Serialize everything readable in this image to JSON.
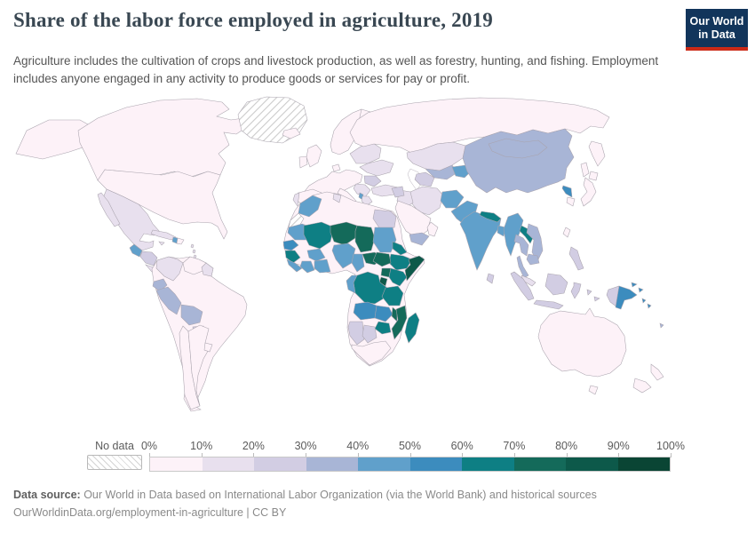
{
  "header": {
    "title": "Share of the labor force employed in agriculture, 2019",
    "subtitle": "Agriculture includes the cultivation of crops and livestock production, as well as forestry, hunting, and fishing. Employment includes anyone engaged in any activity to produce goods or services for pay or profit.",
    "logo": {
      "line1": "Our World",
      "line2": "in Data",
      "bg_color": "#12355b",
      "accent_color": "#cc2a17"
    }
  },
  "footer": {
    "source_label": "Data source:",
    "source_text": " Our World in Data based on International Labor Organization (via the World Bank) and historical sources",
    "link_text": "OurWorldinData.org/employment-in-agriculture | CC BY"
  },
  "chart_data": {
    "type": "choropleth",
    "title": "Share of the labor force employed in agriculture",
    "year": "2019",
    "unit": "% of labor force",
    "legend": {
      "no_data_label": "No data",
      "tick_labels": [
        "0%",
        "10%",
        "20%",
        "30%",
        "40%",
        "50%",
        "60%",
        "70%",
        "80%",
        "90%",
        "100%"
      ],
      "bin_size": 10,
      "bin_colors": [
        "#fdf2f8",
        "#e8e0ee",
        "#d2cde3",
        "#a8b5d6",
        "#60a0cb",
        "#3c8cbe",
        "#0e7f84",
        "#146a5a",
        "#0d594a",
        "#0a4534"
      ],
      "no_data_pattern": "diagonal-hatch"
    },
    "countries": [
      {
        "id": "usa",
        "name": "United States",
        "value": 1
      },
      {
        "id": "canada",
        "name": "Canada",
        "value": 2
      },
      {
        "id": "greenland",
        "name": "Greenland",
        "value": null
      },
      {
        "id": "iceland",
        "name": "Iceland",
        "value": 4
      },
      {
        "id": "mexico",
        "name": "Mexico",
        "value": 12
      },
      {
        "id": "guatemala",
        "name": "Guatemala",
        "value": 41
      },
      {
        "id": "honduras-nicaragua",
        "name": "Honduras & Nicaragua",
        "value": 29
      },
      {
        "id": "costa-rica-panama",
        "name": "Costa Rica & Panama",
        "value": 13
      },
      {
        "id": "cuba",
        "name": "Cuba",
        "value": 17
      },
      {
        "id": "jamaica",
        "name": "Jamaica",
        "value": 15
      },
      {
        "id": "haiti",
        "name": "Haiti",
        "value": 45
      },
      {
        "id": "dominican-republic",
        "name": "Dominican Republic",
        "value": 8
      },
      {
        "id": "lesser-antilles",
        "name": "Lesser Antilles",
        "value": 15
      },
      {
        "id": "colombia",
        "name": "Colombia",
        "value": 16
      },
      {
        "id": "venezuela",
        "name": "Venezuela",
        "value": 8
      },
      {
        "id": "guyana-suriname",
        "name": "Guyana & Suriname",
        "value": 17
      },
      {
        "id": "ecuador",
        "name": "Ecuador",
        "value": 31
      },
      {
        "id": "peru",
        "name": "Peru",
        "value": 31
      },
      {
        "id": "bolivia",
        "name": "Bolivia",
        "value": 33
      },
      {
        "id": "brazil",
        "name": "Brazil",
        "value": 9
      },
      {
        "id": "paraguay",
        "name": "Paraguay",
        "value": 21
      },
      {
        "id": "chile",
        "name": "Chile",
        "value": 9
      },
      {
        "id": "argentina",
        "name": "Argentina",
        "value": 7
      },
      {
        "id": "uruguay",
        "name": "Uruguay",
        "value": 8
      },
      {
        "id": "uk",
        "name": "United Kingdom",
        "value": 1
      },
      {
        "id": "ireland",
        "name": "Ireland",
        "value": 4
      },
      {
        "id": "france",
        "name": "France & Western Europe",
        "value": 2
      },
      {
        "id": "spain",
        "name": "Spain",
        "value": 4
      },
      {
        "id": "portugal",
        "name": "Portugal",
        "value": 12
      },
      {
        "id": "scandinavia",
        "name": "Norway & Sweden",
        "value": 2
      },
      {
        "id": "finland",
        "name": "Finland",
        "value": 4
      },
      {
        "id": "denmark",
        "name": "Denmark",
        "value": 2
      },
      {
        "id": "eastern-europe",
        "name": "Poland, Baltics & Belarus",
        "value": 12
      },
      {
        "id": "ukraine",
        "name": "Ukraine",
        "value": 14
      },
      {
        "id": "romania",
        "name": "Romania",
        "value": 25
      },
      {
        "id": "balkans",
        "name": "Balkans",
        "value": 15
      },
      {
        "id": "albania",
        "name": "Albania",
        "value": 42
      },
      {
        "id": "greece",
        "name": "Greece",
        "value": 11
      },
      {
        "id": "italy",
        "name": "Italy",
        "value": 4
      },
      {
        "id": "turkey",
        "name": "Turkey",
        "value": 18
      },
      {
        "id": "russia",
        "name": "Russia",
        "value": 6
      },
      {
        "id": "kazakhstan",
        "name": "Kazakhstan",
        "value": 13
      },
      {
        "id": "uzbekistan",
        "name": "Uzbekistan",
        "value": 32
      },
      {
        "id": "turkmenistan",
        "name": "Turkmenistan",
        "value": 24
      },
      {
        "id": "tajikistan-kyrgyzstan",
        "name": "Tajikistan & Kyrgyzstan",
        "value": 45
      },
      {
        "id": "iran",
        "name": "Iran",
        "value": 17
      },
      {
        "id": "iraq",
        "name": "Iraq",
        "value": 18
      },
      {
        "id": "syria",
        "name": "Syria",
        "value": 22
      },
      {
        "id": "saudi-arabia",
        "name": "Saudi Arabia",
        "value": 2
      },
      {
        "id": "yemen",
        "name": "Yemen",
        "value": 33
      },
      {
        "id": "oman",
        "name": "Oman",
        "value": 4
      },
      {
        "id": "afghanistan",
        "name": "Afghanistan",
        "value": 43
      },
      {
        "id": "pakistan",
        "name": "Pakistan",
        "value": 41
      },
      {
        "id": "india",
        "name": "India",
        "value": 43
      },
      {
        "id": "nepal",
        "name": "Nepal",
        "value": 64
      },
      {
        "id": "bangladesh",
        "name": "Bangladesh",
        "value": 42
      },
      {
        "id": "sri-lanka",
        "name": "Sri Lanka",
        "value": 25
      },
      {
        "id": "china",
        "name": "China",
        "value": 31
      },
      {
        "id": "mongolia",
        "name": "Mongolia",
        "value": 31
      },
      {
        "id": "north-korea",
        "name": "North Korea",
        "value": 52
      },
      {
        "id": "south-korea",
        "name": "South Korea",
        "value": 5
      },
      {
        "id": "japan",
        "name": "Japan",
        "value": 3
      },
      {
        "id": "taiwan",
        "name": "Taiwan",
        "value": 5
      },
      {
        "id": "myanmar",
        "name": "Myanmar",
        "value": 48
      },
      {
        "id": "laos",
        "name": "Laos",
        "value": 61
      },
      {
        "id": "thailand",
        "name": "Thailand",
        "value": 31
      },
      {
        "id": "vietnam",
        "name": "Vietnam",
        "value": 37
      },
      {
        "id": "cambodia",
        "name": "Cambodia",
        "value": 33
      },
      {
        "id": "malaysia",
        "name": "Malaysia",
        "value": 10
      },
      {
        "id": "indonesia",
        "name": "Indonesia",
        "value": 28
      },
      {
        "id": "philippines",
        "name": "Philippines",
        "value": 23
      },
      {
        "id": "papua-new-guinea",
        "name": "Papua New Guinea",
        "value": 57
      },
      {
        "id": "solomon-islands",
        "name": "Solomon Islands",
        "value": 55
      },
      {
        "id": "fiji",
        "name": "Fiji",
        "value": 37
      },
      {
        "id": "australia",
        "name": "Australia",
        "value": 3
      },
      {
        "id": "new-zealand",
        "name": "New Zealand",
        "value": 6
      },
      {
        "id": "morocco",
        "name": "Morocco",
        "value": 41
      },
      {
        "id": "western-sahara",
        "name": "Western Sahara",
        "value": null
      },
      {
        "id": "algeria",
        "name": "Algeria & Libya",
        "value": 9
      },
      {
        "id": "tunisia",
        "name": "Tunisia",
        "value": 13
      },
      {
        "id": "egypt",
        "name": "Egypt",
        "value": 23
      },
      {
        "id": "mauritania",
        "name": "Mauritania",
        "value": 44
      },
      {
        "id": "senegal",
        "name": "Senegal & Gambia",
        "value": 52
      },
      {
        "id": "guinea",
        "name": "Guinea",
        "value": 62
      },
      {
        "id": "sierra-leone-liberia",
        "name": "Sierra Leone & Liberia",
        "value": 48
      },
      {
        "id": "ivory-coast",
        "name": "Cote d'Ivoire",
        "value": 40
      },
      {
        "id": "ghana-togo-benin",
        "name": "Ghana, Togo & Benin",
        "value": 42
      },
      {
        "id": "burkina-faso",
        "name": "Burkina Faso",
        "value": 42
      },
      {
        "id": "mali",
        "name": "Mali",
        "value": 63
      },
      {
        "id": "niger",
        "name": "Niger",
        "value": 73
      },
      {
        "id": "nigeria",
        "name": "Nigeria",
        "value": 42
      },
      {
        "id": "chad",
        "name": "Chad",
        "value": 75
      },
      {
        "id": "cameroon",
        "name": "Cameroon",
        "value": 45
      },
      {
        "id": "central-african-republic",
        "name": "Central African Republic",
        "value": 71
      },
      {
        "id": "sudan",
        "name": "Sudan",
        "value": 44
      },
      {
        "id": "south-sudan",
        "name": "South Sudan",
        "value": 71
      },
      {
        "id": "eritrea",
        "name": "Eritrea & Djibouti",
        "value": 63
      },
      {
        "id": "ethiopia",
        "name": "Ethiopia",
        "value": 66
      },
      {
        "id": "somalia",
        "name": "Somalia",
        "value": 84
      },
      {
        "id": "uganda",
        "name": "Uganda",
        "value": 72
      },
      {
        "id": "kenya",
        "name": "Kenya",
        "value": 62
      },
      {
        "id": "rwanda-burundi",
        "name": "Rwanda & Burundi",
        "value": 84
      },
      {
        "id": "drc",
        "name": "Democratic Republic of Congo",
        "value": 65
      },
      {
        "id": "congo-gabon",
        "name": "Congo & Gabon",
        "value": 42
      },
      {
        "id": "tanzania",
        "name": "Tanzania",
        "value": 68
      },
      {
        "id": "angola",
        "name": "Angola",
        "value": 51
      },
      {
        "id": "zambia",
        "name": "Zambia",
        "value": 52
      },
      {
        "id": "malawi",
        "name": "Malawi",
        "value": 76
      },
      {
        "id": "mozambique",
        "name": "Mozambique",
        "value": 70
      },
      {
        "id": "zimbabwe",
        "name": "Zimbabwe",
        "value": 66
      },
      {
        "id": "namibia",
        "name": "Namibia",
        "value": 22
      },
      {
        "id": "botswana",
        "name": "Botswana",
        "value": 23
      },
      {
        "id": "south-africa",
        "name": "South Africa",
        "value": 5
      },
      {
        "id": "madagascar",
        "name": "Madagascar",
        "value": 64
      }
    ]
  }
}
